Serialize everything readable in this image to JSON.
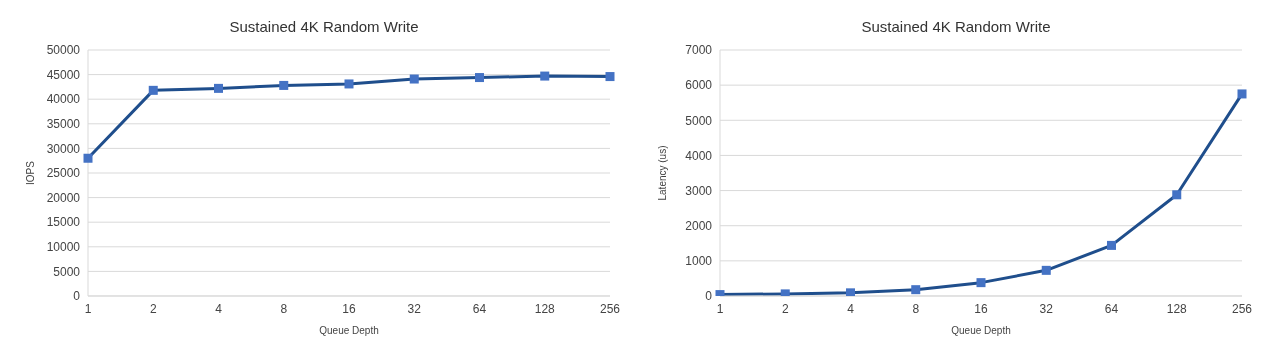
{
  "chart_data": [
    {
      "type": "line",
      "title": "Sustained 4K Random Write",
      "xlabel": "Queue Depth",
      "ylabel": "IOPS",
      "categories": [
        "1",
        "2",
        "4",
        "8",
        "16",
        "32",
        "64",
        "128",
        "256"
      ],
      "series": [
        {
          "color": "#1f4e8c",
          "values": [
            28000,
            41800,
            42200,
            42800,
            43100,
            44100,
            44400,
            44700,
            44600
          ]
        }
      ],
      "ylim": [
        0,
        50000
      ],
      "yticks": [
        0,
        5000,
        10000,
        15000,
        20000,
        25000,
        30000,
        35000,
        40000,
        45000,
        50000
      ],
      "grid": "y",
      "marker": "square",
      "line_style": "solid",
      "legend": false
    },
    {
      "type": "line",
      "title": "Sustained 4K Random Write",
      "xlabel": "Queue Depth",
      "ylabel": "Latency (us)",
      "categories": [
        "1",
        "2",
        "4",
        "8",
        "16",
        "32",
        "64",
        "128",
        "256"
      ],
      "series": [
        {
          "color": "#1f4e8c",
          "values": [
            40,
            60,
            90,
            180,
            380,
            730,
            1440,
            2880,
            5750
          ]
        }
      ],
      "ylim": [
        0,
        7000
      ],
      "yticks": [
        0,
        1000,
        2000,
        3000,
        4000,
        5000,
        6000,
        7000
      ],
      "grid": "y",
      "marker": "square",
      "line_style": "solid",
      "legend": false
    }
  ]
}
